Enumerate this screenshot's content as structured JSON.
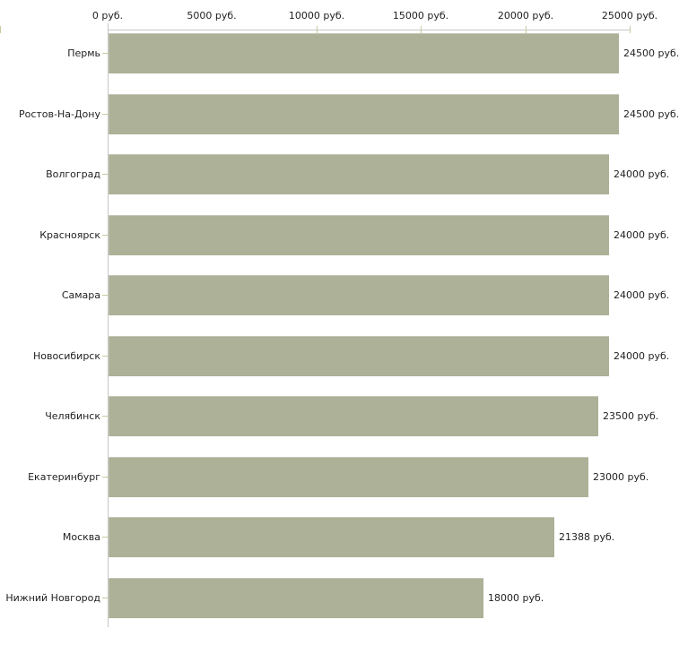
{
  "chart_data": {
    "type": "bar",
    "orientation": "horizontal",
    "categories": [
      "Пермь",
      "Ростов-На-Дону",
      "Волгоград",
      "Красноярск",
      "Самара",
      "Новосибирск",
      "Челябинск",
      "Екатеринбург",
      "Москва",
      "Нижний Новгород"
    ],
    "values": [
      24500,
      24500,
      24000,
      24000,
      24000,
      24000,
      23500,
      23000,
      21388,
      18000
    ],
    "value_labels": [
      "24500 руб.",
      "24500 руб.",
      "24000 руб.",
      "24000 руб.",
      "24000 руб.",
      "24000 руб.",
      "23500 руб.",
      "23000 руб.",
      "21388 руб.",
      "18000 руб."
    ],
    "x_ticks": [
      "0 руб.",
      "5000 руб.",
      "10000 руб.",
      "15000 руб.",
      "20000 руб.",
      "25000 руб."
    ],
    "xlim": [
      0,
      25000
    ],
    "unit": "руб.",
    "grid": false,
    "legend": false,
    "bar_color": "#acb197",
    "axis_color": "#c6c6c6",
    "tick_color": "#c9c99c",
    "text_color": "#1f1f1f"
  }
}
